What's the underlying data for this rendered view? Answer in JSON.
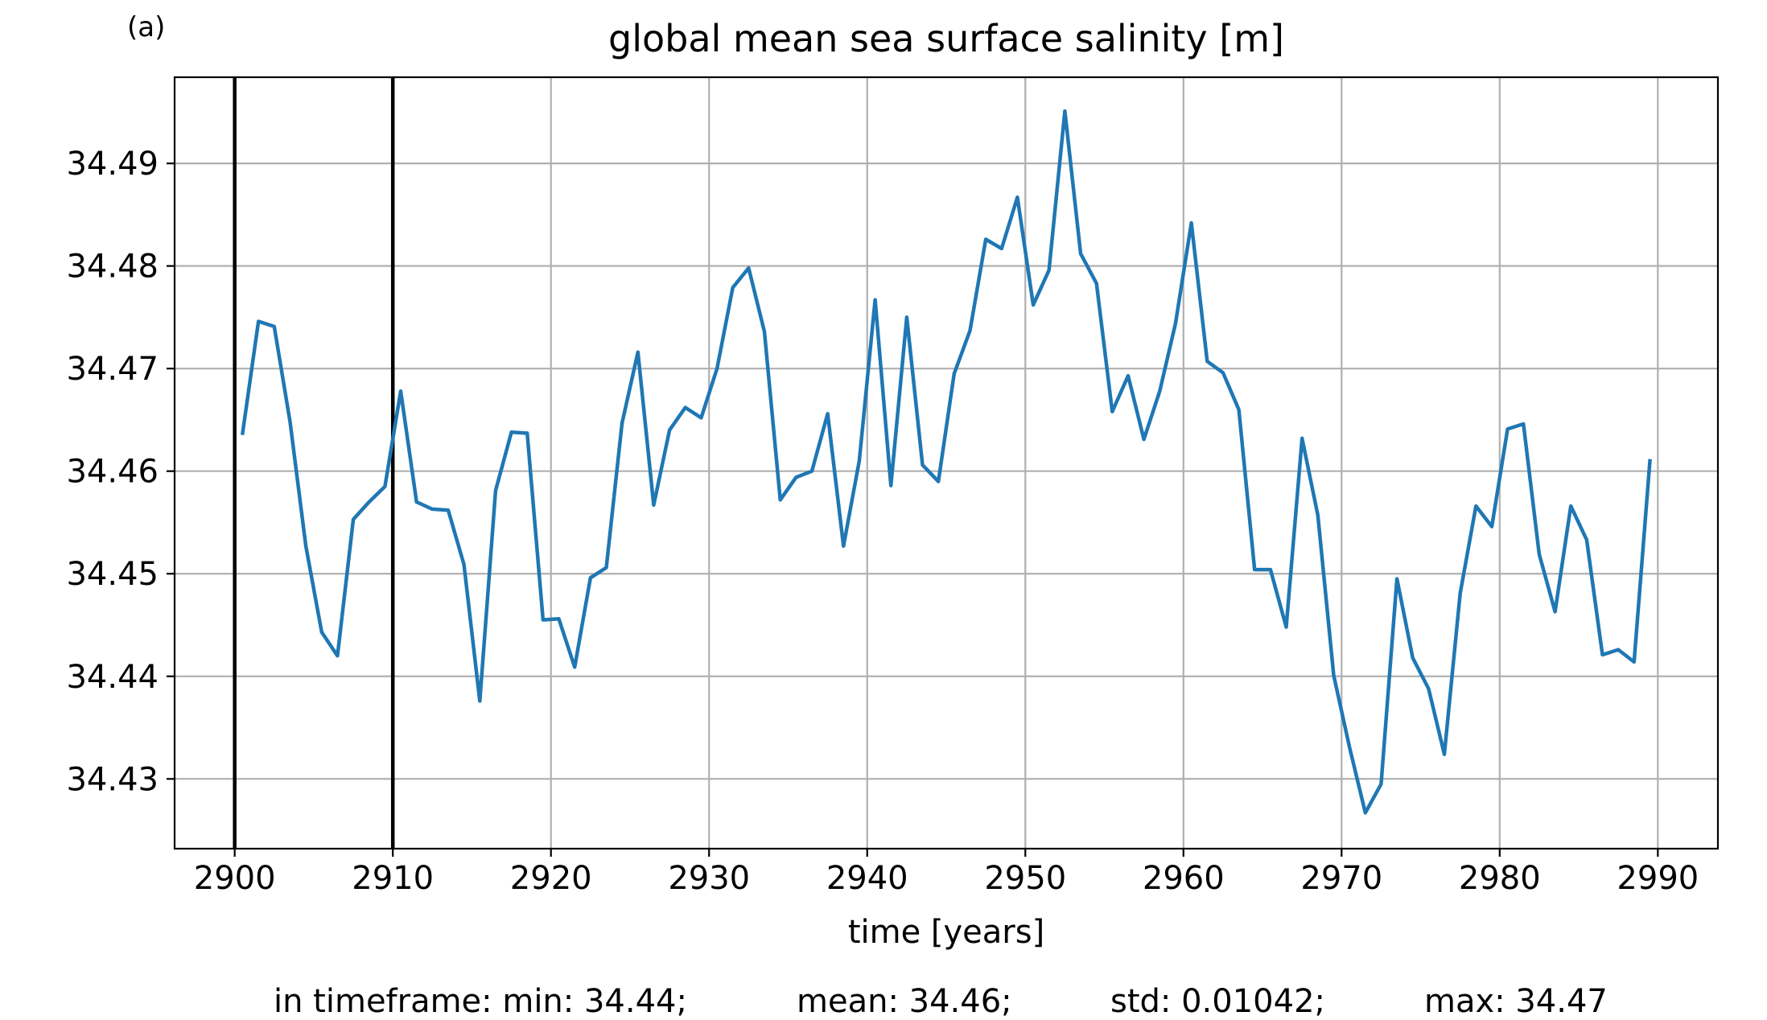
{
  "panel_label": "(a)",
  "chart_data": {
    "type": "line",
    "title": "global mean sea surface salinity [m]",
    "xlabel": "time [years]",
    "ylabel": "",
    "xlim": [
      2896.2,
      2993.8
    ],
    "ylim": [
      34.4232,
      34.4984
    ],
    "xticks": [
      2900,
      2910,
      2920,
      2930,
      2940,
      2950,
      2960,
      2970,
      2980,
      2990
    ],
    "xtick_labels": [
      "2900",
      "2910",
      "2920",
      "2930",
      "2940",
      "2950",
      "2960",
      "2970",
      "2980",
      "2990"
    ],
    "yticks": [
      34.43,
      34.44,
      34.45,
      34.46,
      34.47,
      34.48,
      34.49
    ],
    "ytick_labels": [
      "34.43",
      "34.44",
      "34.45",
      "34.46",
      "34.47",
      "34.48",
      "34.49"
    ],
    "grid": true,
    "vertical_lines": [
      2900,
      2910
    ],
    "series": [
      {
        "color": "#1f77b4",
        "x": [
          2900.5,
          2901.5,
          2902.5,
          2903.5,
          2904.5,
          2905.5,
          2906.5,
          2907.5,
          2908.5,
          2909.5,
          2910.5,
          2911.5,
          2912.5,
          2913.5,
          2914.5,
          2915.5,
          2916.5,
          2917.5,
          2918.5,
          2919.5,
          2920.5,
          2921.5,
          2922.5,
          2923.5,
          2924.5,
          2925.5,
          2926.5,
          2927.5,
          2928.5,
          2929.5,
          2930.5,
          2931.5,
          2932.5,
          2933.5,
          2934.5,
          2935.5,
          2936.5,
          2937.5,
          2938.5,
          2939.5,
          2940.5,
          2941.5,
          2942.5,
          2943.5,
          2944.5,
          2945.5,
          2946.5,
          2947.5,
          2948.5,
          2949.5,
          2950.5,
          2951.5,
          2952.5,
          2953.5,
          2954.5,
          2955.5,
          2956.5,
          2957.5,
          2958.5,
          2959.5,
          2960.5,
          2961.5,
          2962.5,
          2963.5,
          2964.5,
          2965.5,
          2966.5,
          2967.5,
          2968.5,
          2969.5,
          2970.5,
          2971.5,
          2972.5,
          2973.5,
          2974.5,
          2975.5,
          2976.5,
          2977.5,
          2978.5,
          2979.5,
          2980.5,
          2981.5,
          2982.5,
          2983.5,
          2984.5,
          2985.5,
          2986.5,
          2987.5,
          2988.5,
          2989.5
        ],
        "y": [
          34.4637,
          34.4746,
          34.4741,
          34.4648,
          34.4527,
          34.4443,
          34.442,
          34.4553,
          34.457,
          34.4585,
          34.4678,
          34.457,
          34.4563,
          34.4562,
          34.4509,
          34.4376,
          34.4581,
          34.4638,
          34.4637,
          34.4455,
          34.4456,
          34.4409,
          34.4496,
          34.4506,
          34.4647,
          34.4716,
          34.4567,
          34.464,
          34.4662,
          34.4652,
          34.47,
          34.4779,
          34.4798,
          34.4736,
          34.4572,
          34.4594,
          34.46,
          34.4656,
          34.4527,
          34.461,
          34.4767,
          34.4586,
          34.475,
          34.4606,
          34.459,
          34.4695,
          34.4737,
          34.4826,
          34.4817,
          34.4867,
          34.4762,
          34.4796,
          34.4951,
          34.4812,
          34.4783,
          34.4658,
          34.4693,
          34.4631,
          34.4678,
          34.4744,
          34.4842,
          34.4707,
          34.4696,
          34.466,
          34.4504,
          34.4504,
          34.4448,
          34.4632,
          34.4557,
          34.4401,
          34.4331,
          34.4267,
          34.4295,
          34.4495,
          34.4418,
          34.4388,
          34.4324,
          34.4481,
          34.4566,
          34.4546,
          34.4641,
          34.4646,
          34.4519,
          34.4463,
          34.4566,
          34.4533,
          34.4421,
          34.4426,
          34.4414,
          34.461
        ]
      }
    ]
  },
  "stats": {
    "min_text": "in timeframe: min: 34.44;",
    "mean_text": "mean: 34.46;",
    "std_text": "std: 0.01042;",
    "max_text": "max: 34.47"
  }
}
